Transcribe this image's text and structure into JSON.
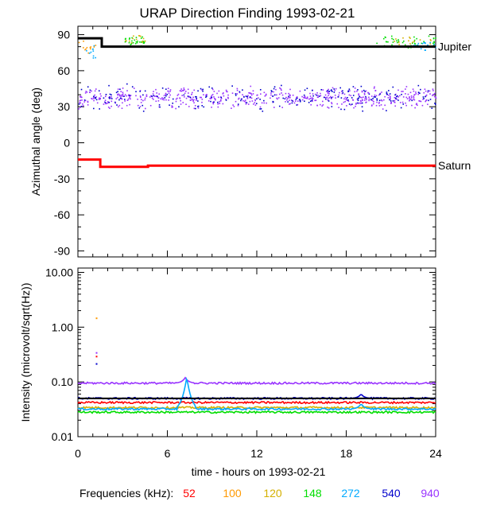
{
  "chart_data": [
    {
      "type": "scatter",
      "title": "URAP Direction Finding  1993-02-21",
      "ylabel": "Azimuthal angle (deg)",
      "ylim": [
        -95,
        97
      ],
      "yticks": [
        "90",
        "60",
        "30",
        "0",
        "-30",
        "-60",
        "-90"
      ],
      "xlim": [
        0,
        24
      ],
      "grid": false,
      "reference_lines": [
        {
          "name": "Jupiter",
          "color": "#000000",
          "x": [
            0,
            1.6,
            1.6,
            24
          ],
          "y": [
            87,
            87,
            80,
            80
          ]
        },
        {
          "name": "Saturn",
          "color": "#ff0000",
          "x": [
            0,
            1.5,
            1.5,
            4.7,
            4.7,
            24
          ],
          "y": [
            -14,
            -14,
            -20,
            -20,
            -19,
            -19
          ]
        }
      ],
      "series": [
        {
          "name": "52",
          "color": "#ff0000"
        },
        {
          "name": "100",
          "color": "#ff9900"
        },
        {
          "name": "120",
          "color": "#d4b000"
        },
        {
          "name": "148",
          "color": "#00dd00"
        },
        {
          "name": "272",
          "color": "#00aaff"
        },
        {
          "name": "540",
          "color": "#0000cc"
        },
        {
          "name": "940",
          "color": "#9933ff"
        }
      ],
      "clusters": [
        {
          "series": "940",
          "x_range": [
            0,
            24
          ],
          "y_center": 38,
          "y_spread": 10,
          "count": 600
        },
        {
          "series": "540",
          "x_range": [
            0,
            24
          ],
          "y_center": 38,
          "y_spread": 12,
          "count": 220
        },
        {
          "series": "148",
          "x_range": [
            3,
            4.5
          ],
          "y_center": 85,
          "y_spread": 5,
          "count": 30
        },
        {
          "series": "120",
          "x_range": [
            3,
            4.5
          ],
          "y_center": 86,
          "y_spread": 4,
          "count": 15
        },
        {
          "series": "100",
          "x_range": [
            0,
            1.2
          ],
          "y_center": 80,
          "y_spread": 6,
          "count": 12
        },
        {
          "series": "272",
          "x_range": [
            0.5,
            1.2
          ],
          "y_center": 75,
          "y_spread": 8,
          "count": 10
        },
        {
          "series": "148",
          "x_range": [
            20,
            24
          ],
          "y_center": 84,
          "y_spread": 6,
          "count": 45
        },
        {
          "series": "272",
          "x_range": [
            22,
            24
          ],
          "y_center": 82,
          "y_spread": 5,
          "count": 20
        },
        {
          "series": "120",
          "x_range": [
            21,
            24
          ],
          "y_center": 85,
          "y_spread": 5,
          "count": 15
        }
      ]
    },
    {
      "type": "line",
      "ylabel": "Intensity (microvolt/sqrt(Hz))",
      "xlabel": "time - hours on 1993-02-21",
      "y_scale": "log",
      "ylim": [
        0.01,
        12
      ],
      "yticks": [
        "10.00",
        "1.00",
        "0.10",
        "0.01"
      ],
      "xlim": [
        0,
        24
      ],
      "xticks": [
        "0",
        "6",
        "12",
        "18",
        "24"
      ],
      "reference_lines": [
        {
          "color": "#000000",
          "y": 0.05
        }
      ],
      "series": [
        {
          "name": "940",
          "color": "#9933ff",
          "baseline": 0.095
        },
        {
          "name": "540",
          "color": "#0000cc",
          "baseline": 0.05
        },
        {
          "name": "52",
          "color": "#ff0000",
          "baseline": 0.042
        },
        {
          "name": "120",
          "color": "#d4b000",
          "baseline": 0.034
        },
        {
          "name": "272",
          "color": "#00aaff",
          "baseline": 0.032
        },
        {
          "name": "148",
          "color": "#00dd00",
          "baseline": 0.028
        }
      ],
      "spikes": [
        {
          "series": "272",
          "x": 7.3,
          "y": 0.12
        },
        {
          "series": "940",
          "x": 7.2,
          "y": 0.12
        },
        {
          "series": "540",
          "x": 19,
          "y": 0.06
        },
        {
          "series": "272",
          "x": 19,
          "y": 0.04
        }
      ],
      "outliers": [
        {
          "series": "100",
          "x": 1.2,
          "y": 1.5
        },
        {
          "series": "940",
          "x": 1.2,
          "y": 0.35
        },
        {
          "series": "52",
          "x": 1.2,
          "y": 0.3
        },
        {
          "series": "540",
          "x": 1.2,
          "y": 0.22
        }
      ]
    }
  ],
  "legend": {
    "label": "Frequencies (kHz):",
    "items": [
      {
        "text": "52",
        "color": "#ff0000"
      },
      {
        "text": "100",
        "color": "#ff9900"
      },
      {
        "text": "120",
        "color": "#d4b000"
      },
      {
        "text": "148",
        "color": "#00dd00"
      },
      {
        "text": "272",
        "color": "#00aaff"
      },
      {
        "text": "540",
        "color": "#0000cc"
      },
      {
        "text": "940",
        "color": "#9933ff"
      }
    ]
  }
}
